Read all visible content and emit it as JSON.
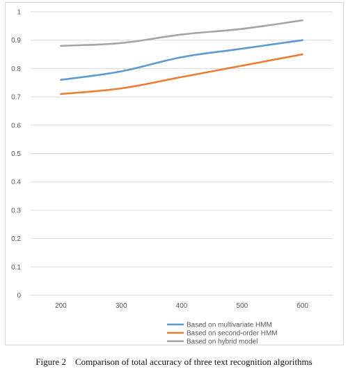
{
  "caption": "Figure 2    Comparison of total accuracy of three text recognition algorithms",
  "chart_data": {
    "type": "line",
    "title": "",
    "xlabel": "",
    "ylabel": "",
    "x": [
      "200",
      "300",
      "400",
      "500",
      "600"
    ],
    "ylim": [
      0,
      1
    ],
    "yticks": [
      "0",
      "0.1",
      "0.2",
      "0.3",
      "0.4",
      "0.5",
      "0.6",
      "0.7",
      "0.8",
      "0.9",
      "1"
    ],
    "grid": true,
    "legend_position": "bottom-right",
    "series": [
      {
        "name": "Based on multivariate HMM",
        "color": "#5b9bd5",
        "values": [
          0.76,
          0.79,
          0.84,
          0.87,
          0.9
        ]
      },
      {
        "name": "Based on second-order HMM",
        "color": "#ed7d31",
        "values": [
          0.71,
          0.73,
          0.77,
          0.81,
          0.85
        ]
      },
      {
        "name": "Based on hybrid model",
        "color": "#a5a5a5",
        "values": [
          0.88,
          0.89,
          0.92,
          0.94,
          0.97
        ]
      }
    ]
  }
}
